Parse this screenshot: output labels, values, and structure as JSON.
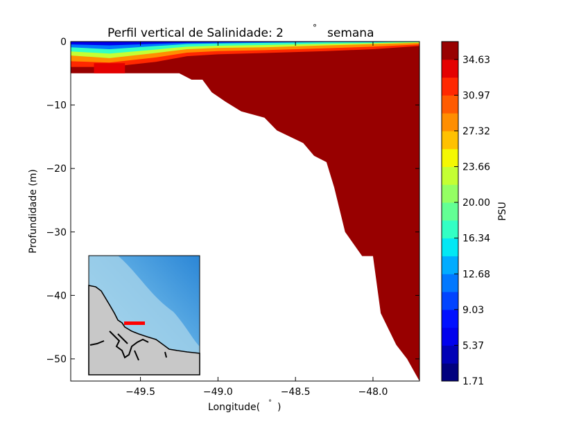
{
  "chart_data": {
    "type": "heatmap",
    "title": "Perfil vertical de Salinidade: 2° semana",
    "title_main": "Perfil vertical de Salinidade: 2",
    "title_degree": "°",
    "title_tail": "semana",
    "xlabel": "Longitude(°)",
    "xlabel_main": "Longitude(",
    "xlabel_degree": "°",
    "xlabel_close": ")",
    "ylabel": "Profundidade (m)",
    "xlim": [
      -49.95,
      -47.7
    ],
    "ylim": [
      -53.5,
      0
    ],
    "x_ticks": [
      -49.5,
      -49.0,
      -48.5,
      -48.0
    ],
    "x_tick_labels": [
      "−49.5",
      "−49.0",
      "−48.5",
      "−48.0"
    ],
    "y_ticks": [
      0,
      -10,
      -20,
      -30,
      -40,
      -50
    ],
    "y_tick_labels": [
      "0",
      "−10",
      "−20",
      "−30",
      "−40",
      "−50"
    ],
    "bathymetry": {
      "longitude": [
        -49.95,
        -49.25,
        -49.17,
        -49.1,
        -49.04,
        -48.95,
        -48.85,
        -48.7,
        -48.62,
        -48.45,
        -48.38,
        -48.3,
        -48.25,
        -48.18,
        -48.07,
        -48.0,
        -47.95,
        -47.85,
        -47.78,
        -47.7
      ],
      "depth": [
        -5,
        -5,
        -6,
        -6,
        -8,
        -9.5,
        -11,
        -12,
        -14,
        -16,
        -18,
        -19,
        -23,
        -30,
        -33.8,
        -33.8,
        -42.8,
        -47.8,
        -50,
        -53.5
      ]
    },
    "surface_layer": {
      "longitude": [
        -49.95,
        -49.7,
        -49.4,
        -49.2,
        -49.0,
        -48.7,
        -48.3,
        -48.0,
        -47.7
      ],
      "isohaline_34_depth": [
        -4.0,
        -4.0,
        -3.2,
        -2.3,
        -2.0,
        -1.8,
        -1.5,
        -1.2,
        -0.7
      ],
      "isohaline_20_depth": [
        -2.2,
        -2.6,
        -1.8,
        -1.2,
        -1.0,
        -0.9,
        -0.6,
        -0.4,
        -0.2
      ],
      "isohaline_10_depth": [
        -0.9,
        -1.2,
        -0.7,
        -0.4,
        -0.3,
        -0.2,
        -0.1,
        -0.1,
        0.0
      ],
      "note_core_near_bottom_longitude": [
        -49.8,
        -49.6
      ]
    },
    "colorbar": {
      "label": "PSU",
      "min": 1.71,
      "max": 36.46,
      "tick_values": [
        1.71,
        5.37,
        9.03,
        12.68,
        16.34,
        20.0,
        23.66,
        27.32,
        30.97,
        34.63
      ],
      "tick_labels": [
        "1.71",
        "5.37",
        "9.03",
        "12.68",
        "16.34",
        "20.00",
        "23.66",
        "27.32",
        "30.97",
        "34.63"
      ],
      "levels": 19,
      "colors": [
        "#00007f",
        "#0000b6",
        "#0000ed",
        "#0010ff",
        "#0044ff",
        "#0078ff",
        "#00acff",
        "#02e8f4",
        "#33ffc4",
        "#63ff94",
        "#94ff63",
        "#c4ff33",
        "#f4f802",
        "#ffc100",
        "#ff8e00",
        "#ff5b00",
        "#ff2800",
        "#e40000",
        "#980000"
      ]
    },
    "inset_map": {
      "type": "location-map",
      "section_marker_color": "#ff0000",
      "land_color": "#c8c8c8",
      "ocean_colors": [
        "#a9d6ec",
        "#2d8fd9"
      ]
    }
  }
}
